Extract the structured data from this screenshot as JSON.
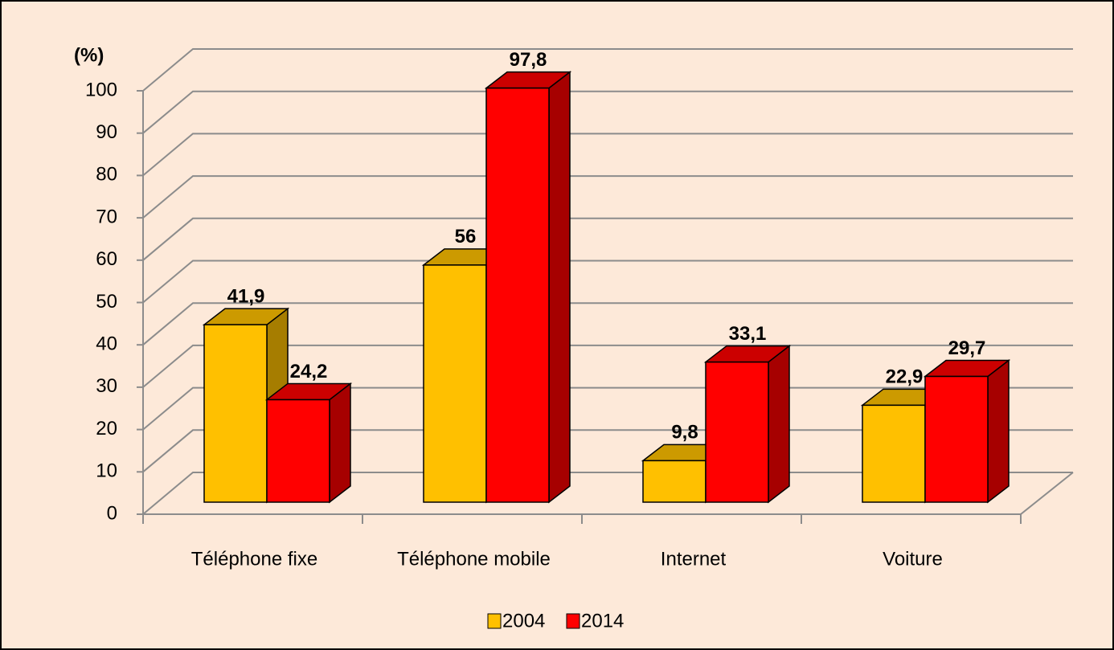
{
  "chart_data": {
    "type": "bar3d",
    "y_label": "(%)",
    "categories": [
      "Téléphone fixe",
      "Téléphone mobile",
      "Internet",
      "Voiture"
    ],
    "series": [
      {
        "name": "2004",
        "color": "#ffc000",
        "values": [
          41.9,
          56,
          9.8,
          22.9
        ],
        "value_labels": [
          "41,9",
          "56",
          "9,8",
          "22,9"
        ]
      },
      {
        "name": "2014",
        "color": "#ff0000",
        "values": [
          24.2,
          97.8,
          33.1,
          29.7
        ],
        "value_labels": [
          "24,2",
          "97,8",
          "33,1",
          "29,7"
        ]
      }
    ],
    "ylim": [
      0,
      100
    ],
    "yticks": [
      0,
      10,
      20,
      30,
      40,
      50,
      60,
      70,
      80,
      90,
      100
    ],
    "grid": true
  }
}
